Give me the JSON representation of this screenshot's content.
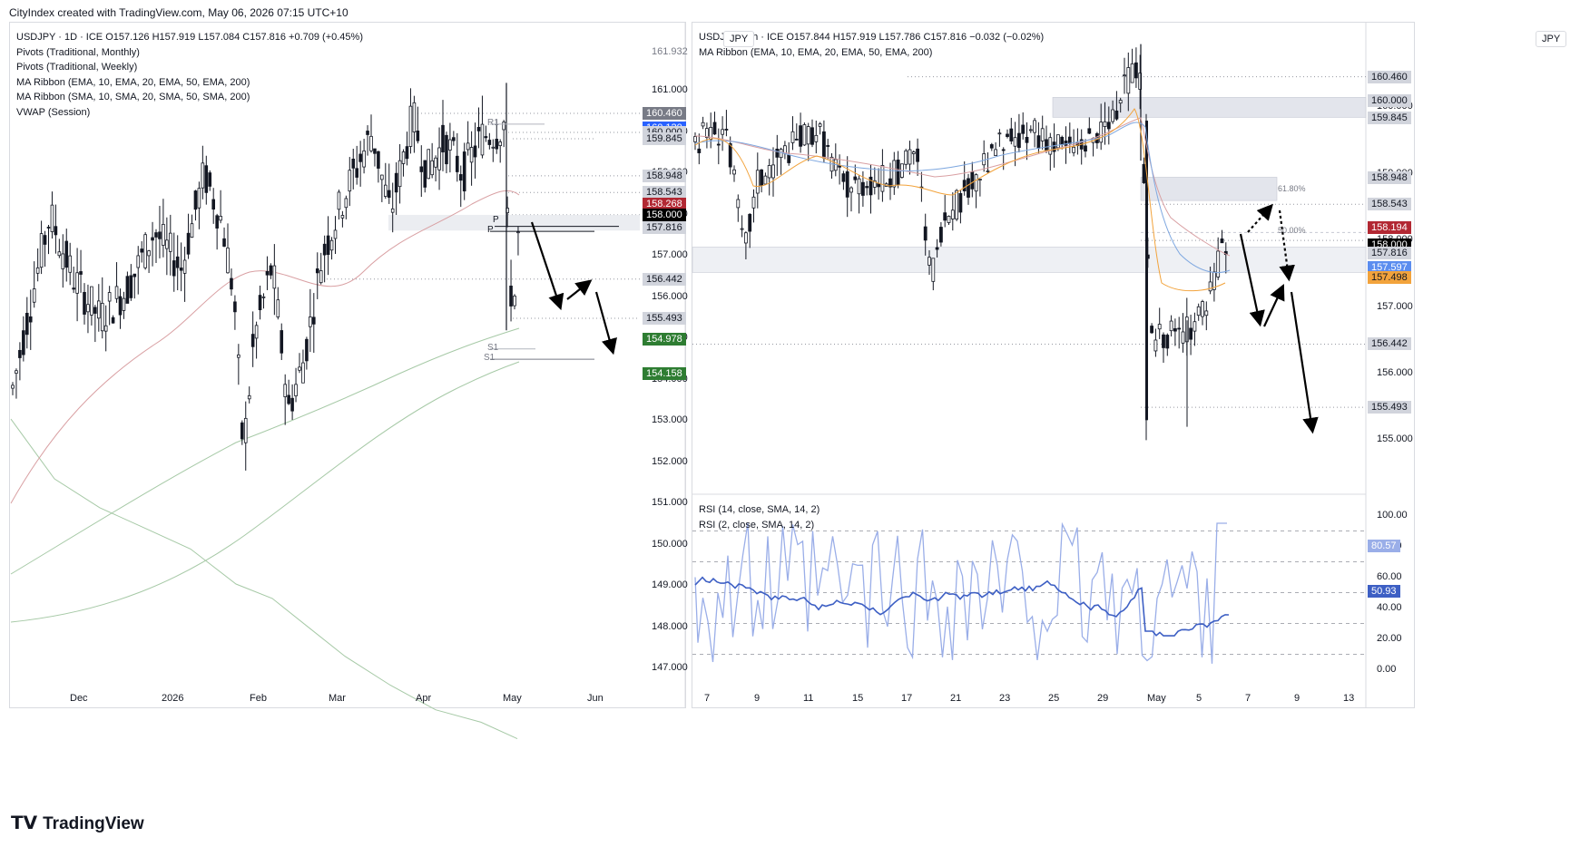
{
  "header": {
    "credit": "CityIndex created with TradingView.com, May 06, 2026 07:15 UTC+10"
  },
  "footer": {
    "brand": "TradingView",
    "logo_icon": "tradingview-logo-icon"
  },
  "colors": {
    "up": "#131722",
    "down": "#131722",
    "ema10": "#f2a33c",
    "ema20": "#7fa8e0",
    "ema50": "#d9a0a3",
    "sma200": "#a6c9a6",
    "rsi14": "#3d5fc4",
    "rsi2": "#9aaee8",
    "arrow": "#000000",
    "pivot_line": "#555555"
  },
  "left": {
    "currency": "JPY",
    "legend": [
      "USDJPY · 1D · ICE  O157.126  H157.919  L157.084  C157.816  +0.709 (+0.45%)",
      "Pivots (Traditional, Monthly)",
      "Pivots (Traditional, Weekly)",
      "MA Ribbon (EMA, 10, EMA, 20, EMA, 50, EMA, 200)",
      "MA Ribbon (SMA, 10, SMA, 20, SMA, 50, SMA, 200)",
      "VWAP (Session)"
    ],
    "y_ticks": [
      "161.932",
      "161.000",
      "160.000",
      "159.000",
      "158.000",
      "157.000",
      "156.000",
      "155.000",
      "154.000",
      "153.000",
      "152.000",
      "151.000",
      "150.000",
      "149.000",
      "148.000",
      "147.000"
    ],
    "x_ticks": [
      "Dec",
      "2026",
      "Feb",
      "Mar",
      "Apr",
      "May",
      "Jun"
    ],
    "pivot_labels": [
      "R1",
      "P",
      "P",
      "S1",
      "S1"
    ],
    "price_badges": [
      {
        "text": "160.460",
        "bg": "#787b86",
        "fg": "#ffffff",
        "y": 160.46
      },
      {
        "text": "160.120",
        "bg": "#2962ff",
        "fg": "#ffffff",
        "y": 160.12
      },
      {
        "text": "160.000",
        "bg": "#d1d4dc",
        "fg": "#131722",
        "y": 160.0
      },
      {
        "text": "159.845",
        "bg": "#d1d4dc",
        "fg": "#131722",
        "y": 159.845
      },
      {
        "text": "158.948",
        "bg": "#d1d4dc",
        "fg": "#131722",
        "y": 158.948
      },
      {
        "text": "158.543",
        "bg": "#d1d4dc",
        "fg": "#131722",
        "y": 158.543
      },
      {
        "text": "158.268",
        "bg": "#b22833",
        "fg": "#ffffff",
        "y": 158.268
      },
      {
        "text": "158.000",
        "bg": "#000000",
        "fg": "#ffffff",
        "y": 158.0
      },
      {
        "text": "157.816",
        "bg": "#d1d4dc",
        "fg": "#131722",
        "y": 157.7
      },
      {
        "text": "156.442",
        "bg": "#d1d4dc",
        "fg": "#131722",
        "y": 156.442
      },
      {
        "text": "155.493",
        "bg": "#d1d4dc",
        "fg": "#131722",
        "y": 155.493
      },
      {
        "text": "154.978",
        "bg": "#2e7d32",
        "fg": "#ffffff",
        "y": 154.978
      },
      {
        "text": "154.158",
        "bg": "#2e7d32",
        "fg": "#ffffff",
        "y": 154.158
      }
    ]
  },
  "right": {
    "currency": "JPY",
    "legend": [
      "USDJPY · 4h · ICE  O157.844  H157.919  L157.786  C157.816  −0.032 (−0.02%)",
      "MA Ribbon (EMA, 10, EMA, 20, EMA, 50, EMA, 200)"
    ],
    "y_ticks": [
      "160.000",
      "159.000",
      "158.000",
      "157.000",
      "156.000",
      "155.000"
    ],
    "x_ticks": [
      "7",
      "9",
      "11",
      "15",
      "17",
      "21",
      "23",
      "25",
      "29",
      "May",
      "5",
      "7",
      "9",
      "13"
    ],
    "fib_labels": [
      "61.80%",
      "50.00%"
    ],
    "price_badges": [
      {
        "text": "160.460",
        "bg": "#d1d4dc",
        "fg": "#131722",
        "y": 160.46
      },
      {
        "text": "160.000",
        "bg": "#d1d4dc",
        "fg": "#131722",
        "y": 160.1
      },
      {
        "text": "159.845",
        "bg": "#d1d4dc",
        "fg": "#131722",
        "y": 159.845
      },
      {
        "text": "158.948",
        "bg": "#d1d4dc",
        "fg": "#131722",
        "y": 158.948
      },
      {
        "text": "158.543",
        "bg": "#d1d4dc",
        "fg": "#131722",
        "y": 158.543
      },
      {
        "text": "158.194",
        "bg": "#b22833",
        "fg": "#ffffff",
        "y": 158.194
      },
      {
        "text": "158.000",
        "bg": "#000000",
        "fg": "#ffffff",
        "y": 157.93
      },
      {
        "text": "157.816",
        "bg": "#d1d4dc",
        "fg": "#131722",
        "y": 157.816
      },
      {
        "text": "157.597",
        "bg": "#5b8def",
        "fg": "#ffffff",
        "y": 157.597
      },
      {
        "text": "157.498",
        "bg": "#f2a33c",
        "fg": "#131722",
        "y": 157.45
      },
      {
        "text": "156.442",
        "bg": "#d1d4dc",
        "fg": "#131722",
        "y": 156.442
      },
      {
        "text": "155.493",
        "bg": "#d1d4dc",
        "fg": "#131722",
        "y": 155.493
      }
    ],
    "rsi": {
      "legend": [
        "RSI (14, close, SMA, 14, 2)",
        "RSI (2, close, SMA, 14, 2)"
      ],
      "y_ticks": [
        "100.00",
        "80.00",
        "60.00",
        "40.00",
        "20.00",
        "0.00"
      ],
      "badges": [
        {
          "text": "80.57",
          "bg": "#9aaee8",
          "fg": "#ffffff",
          "y": 80.57
        },
        {
          "text": "50.93",
          "bg": "#3d5fc4",
          "fg": "#ffffff",
          "y": 50.93
        }
      ],
      "levels": [
        90,
        70,
        50,
        30,
        10
      ]
    }
  },
  "chart_data": [
    {
      "type": "candlestick",
      "title": "USDJPY · 1D · ICE",
      "ohlc_last": {
        "open": 157.126,
        "high": 157.919,
        "low": 157.084,
        "close": 157.816
      },
      "change": "+0.709 (+0.45%)",
      "ylim": [
        146.5,
        162.0
      ],
      "x_ticks": [
        "Dec",
        "2026",
        "Feb",
        "Mar",
        "Apr",
        "May",
        "Jun"
      ],
      "key_levels": [
        160.46,
        160.0,
        159.845,
        158.948,
        158.543,
        158.0,
        156.442,
        155.493
      ],
      "projected_path": [
        [
          157.9,
          155.4
        ],
        [
          155.4,
          156.2
        ],
        [
          156.2,
          154.3
        ]
      ]
    },
    {
      "type": "candlestick",
      "title": "USDJPY · 4h · ICE",
      "ohlc_last": {
        "open": 157.844,
        "high": 157.919,
        "low": 157.786,
        "close": 157.816
      },
      "change": "−0.032 (−0.02%)",
      "ylim": [
        154.8,
        161.0
      ],
      "fib_levels": {
        "61.80%": 158.75,
        "50.00%": 158.12
      },
      "projected_path": [
        [
          157.6,
          156.5
        ],
        [
          156.5,
          157.5
        ],
        [
          157.5,
          154.9
        ]
      ]
    },
    {
      "type": "line",
      "title": "RSI",
      "series": [
        {
          "name": "RSI (14, close, SMA, 14, 2)",
          "last": 50.93
        },
        {
          "name": "RSI (2, close, SMA, 14, 2)",
          "last": 80.57
        }
      ],
      "ylim": [
        -5,
        105
      ]
    }
  ]
}
